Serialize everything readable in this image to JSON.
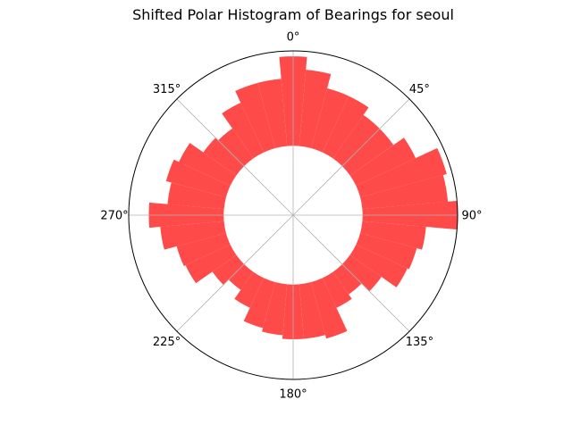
{
  "chart_data": {
    "type": "bar",
    "projection": "polar",
    "title": "Shifted Polar Histogram of Bearings for seoul",
    "theta_zero": "N",
    "theta_direction": "clockwise",
    "bin_width_degrees": 10,
    "bin_centers_degrees": [
      0,
      10,
      20,
      30,
      40,
      50,
      60,
      70,
      80,
      90,
      100,
      110,
      120,
      130,
      140,
      150,
      160,
      170,
      180,
      190,
      200,
      210,
      220,
      230,
      240,
      250,
      260,
      270,
      280,
      290,
      300,
      310,
      320,
      330,
      340,
      350
    ],
    "values": [
      0.87,
      0.8,
      0.72,
      0.72,
      0.67,
      0.67,
      0.74,
      0.87,
      0.85,
      0.9,
      0.73,
      0.7,
      0.69,
      0.59,
      0.53,
      0.56,
      0.7,
      0.68,
      0.68,
      0.66,
      0.64,
      0.56,
      0.5,
      0.54,
      0.65,
      0.66,
      0.73,
      0.79,
      0.69,
      0.72,
      0.69,
      0.6,
      0.58,
      0.68,
      0.75,
      0.75
    ],
    "r_hole": 0.38,
    "r_max": 0.9,
    "bar_color": "#ff4a4a",
    "grid": true,
    "theta_tick_labels": [
      "0°",
      "45°",
      "90°",
      "135°",
      "180°",
      "225°",
      "270°",
      "315°"
    ],
    "theta_tick_angles_degrees": [
      0,
      45,
      90,
      135,
      180,
      225,
      270,
      315
    ]
  }
}
